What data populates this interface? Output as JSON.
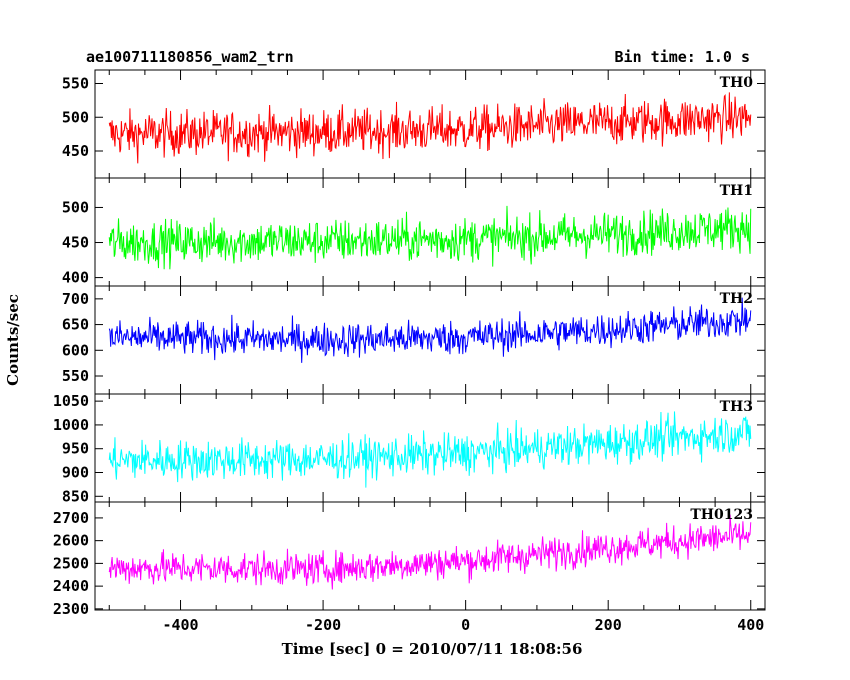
{
  "header": {
    "obs_id": "ae100711180856_wam2_trn",
    "bin_time": "Bin time: 1.0 s"
  },
  "chart_data": {
    "type": "line",
    "xlabel": "Time [sec] 0 = 2010/07/11 18:08:56",
    "ylabel": "Counts/sec",
    "xlim": [
      -520,
      420
    ],
    "xticks": [
      -400,
      -200,
      0,
      200,
      400
    ],
    "x_start": -500,
    "x_end": 400,
    "bin": 1.0,
    "panels": [
      {
        "name": "TH0",
        "color": "#ff0000",
        "ylim": [
          410,
          570
        ],
        "yticks": [
          450,
          500,
          550
        ],
        "trend": [
          {
            "x": -500,
            "y": 475
          },
          {
            "x": -200,
            "y": 478
          },
          {
            "x": 0,
            "y": 482
          },
          {
            "x": 200,
            "y": 492
          },
          {
            "x": 400,
            "y": 500
          }
        ],
        "spread": 30
      },
      {
        "name": "TH1",
        "color": "#00ff00",
        "ylim": [
          388,
          542
        ],
        "yticks": [
          400,
          450,
          500
        ],
        "trend": [
          {
            "x": -500,
            "y": 450
          },
          {
            "x": -200,
            "y": 452
          },
          {
            "x": 0,
            "y": 455
          },
          {
            "x": 200,
            "y": 462
          },
          {
            "x": 400,
            "y": 472
          }
        ],
        "spread": 28
      },
      {
        "name": "TH2",
        "color": "#0000ff",
        "ylim": [
          515,
          725
        ],
        "yticks": [
          550,
          600,
          650,
          700
        ],
        "trend": [
          {
            "x": -500,
            "y": 625
          },
          {
            "x": -200,
            "y": 620
          },
          {
            "x": 0,
            "y": 625
          },
          {
            "x": 200,
            "y": 640
          },
          {
            "x": 400,
            "y": 660
          }
        ],
        "spread": 30
      },
      {
        "name": "TH3",
        "color": "#00ffff",
        "ylim": [
          838,
          1065
        ],
        "yticks": [
          850,
          900,
          950,
          1000,
          1050
        ],
        "trend": [
          {
            "x": -500,
            "y": 925
          },
          {
            "x": -200,
            "y": 928
          },
          {
            "x": 0,
            "y": 940
          },
          {
            "x": 200,
            "y": 962
          },
          {
            "x": 400,
            "y": 985
          }
        ],
        "spread": 38
      },
      {
        "name": "TH0123",
        "color": "#ff00ff",
        "ylim": [
          2295,
          2770
        ],
        "yticks": [
          2300,
          2400,
          2500,
          2600,
          2700
        ],
        "trend": [
          {
            "x": -500,
            "y": 2480
          },
          {
            "x": -200,
            "y": 2475
          },
          {
            "x": 0,
            "y": 2510
          },
          {
            "x": 200,
            "y": 2570
          },
          {
            "x": 400,
            "y": 2625
          }
        ],
        "spread": 65
      }
    ]
  }
}
